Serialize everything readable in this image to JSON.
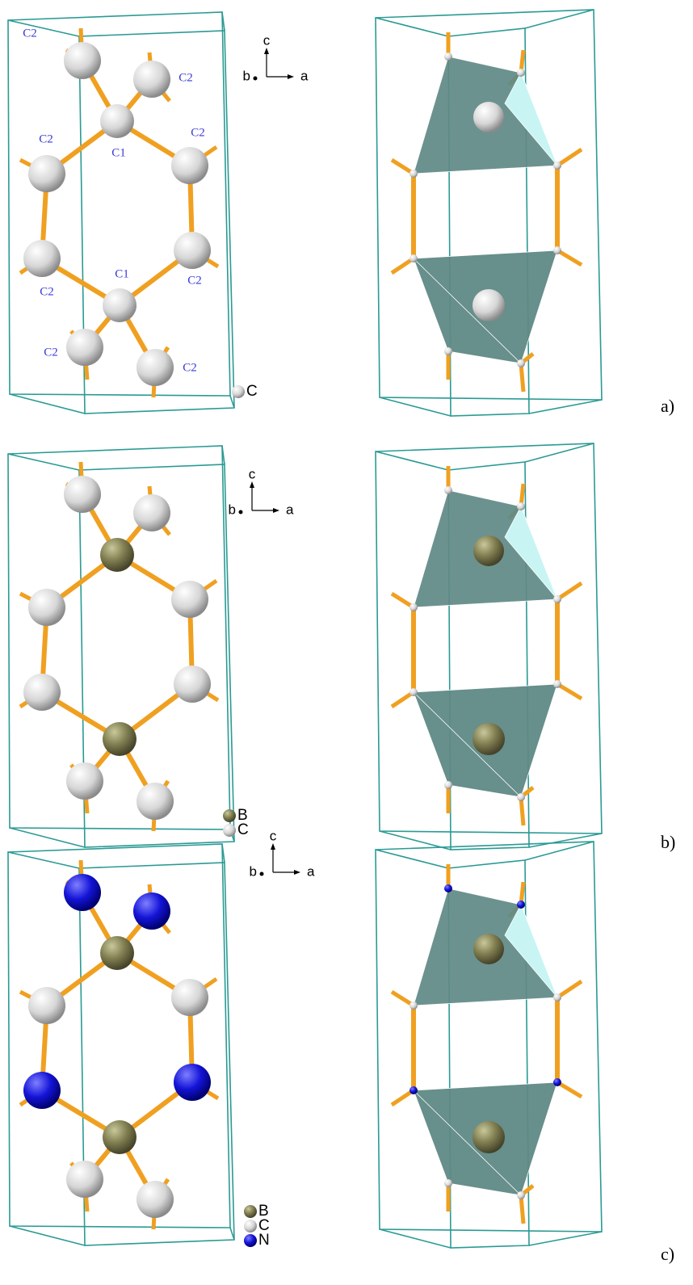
{
  "panels": [
    {
      "label": "a)",
      "axes": {
        "c": "c",
        "b": "b",
        "a": "a"
      },
      "atom_labels": [
        "C2",
        "C2",
        "C2",
        "C1",
        "C2",
        "C1",
        "C2",
        "C2",
        "C2",
        "C2"
      ],
      "legend": [
        "C"
      ]
    },
    {
      "label": "b)",
      "axes": {
        "c": "c",
        "b": "b",
        "a": "a"
      },
      "legend": [
        "B",
        "C"
      ]
    },
    {
      "label": "c)",
      "axes": {
        "c": "c",
        "b": "b",
        "a": "a"
      },
      "legend": [
        "B",
        "C",
        "N"
      ]
    }
  ]
}
